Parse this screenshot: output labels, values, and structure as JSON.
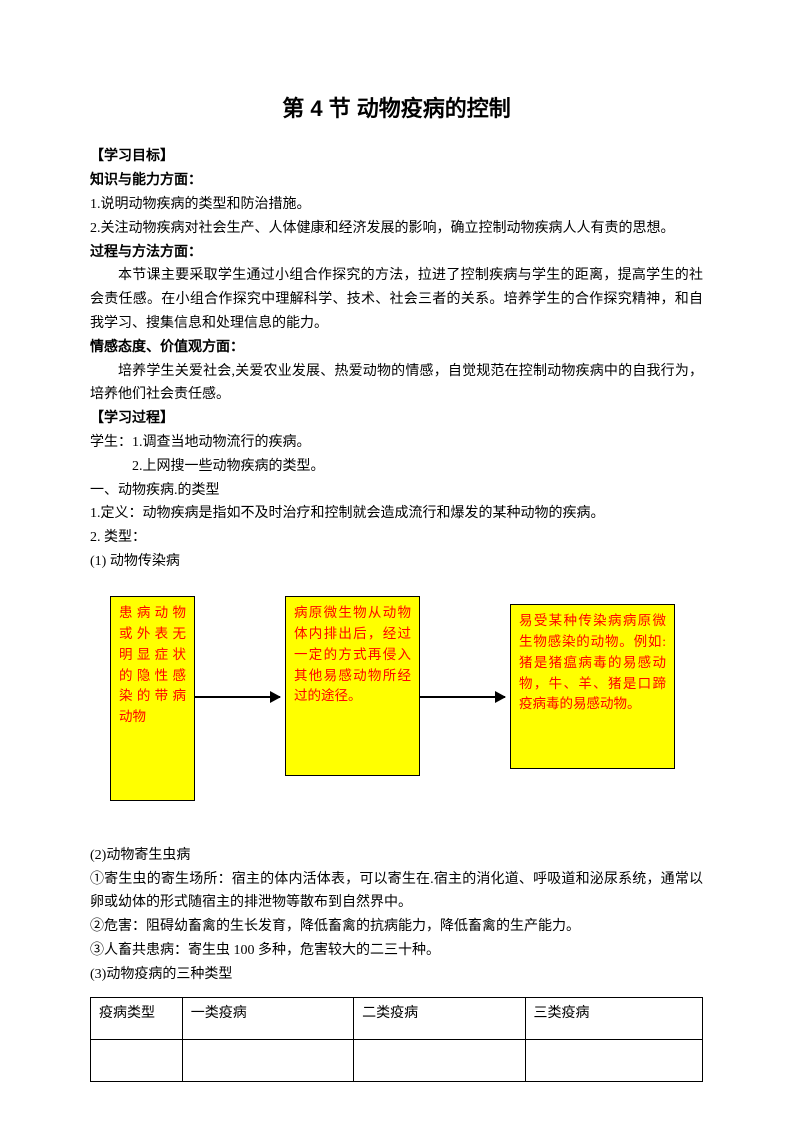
{
  "title": "第 4 节  动物疫病的控制",
  "sections": {
    "goals_header": "【学习目标】",
    "knowledge_header": "知识与能力方面：",
    "knowledge_1": "1.说明动物疾病的类型和防治措施。",
    "knowledge_2": "2.关注动物疾病对社会生产、人体健康和经济发展的影响，确立控制动物疾病人人有责的思想。",
    "method_header": "过程与方法方面：",
    "method_text": "本节课主要采取学生通过小组合作探究的方法，拉进了控制疾病与学生的距离，提高学生的社会责任感。在小组合作探究中理解科学、技术、社会三者的关系。培养学生的合作探究精神，和自我学习、搜集信息和处理信息的能力。",
    "attitude_header": "情感态度、价值观方面：",
    "attitude_text": "培养学生关爱社会,关爱农业发展、热爱动物的情感，自觉规范在控制动物疾病中的自我行为，培养他们社会责任感。",
    "process_header": "【学习过程】",
    "student_1": "学生：1.调查当地动物流行的疾病。",
    "student_2": "2.上网搜一些动物疾病的类型。",
    "type_header": "一、动物疾病.的类型",
    "definition": "1.定义：动物疾病是指如不及时治疗和控制就会造成流行和爆发的某种动物的疾病。",
    "type_label": "2. 类型：",
    "type_1": "(1) 动物传染病",
    "type_2": "(2)动物寄生虫病",
    "parasite_1": "①寄生虫的寄生场所：宿主的体内活体表，可以寄生在.宿主的消化道、呼吸道和泌尿系统，通常以卵或幼体的形式随宿主的排泄物等散布到自然界中。",
    "parasite_2": "②危害：阻碍幼畜禽的生长发育，降低畜禽的抗病能力，降低畜禽的生产能力。",
    "parasite_3": "③人畜共患病：寄生虫 100 多种，危害较大的二三十种。",
    "type_3": "(3)动物疫病的三种类型"
  },
  "flowchart": {
    "box1_text": "患病动物或外表无明显症状的隐性感染的带病动物",
    "box2_text": "病原微生物从动物体内排出后，经过一定的方式再侵入其他易感动物所经过的途径。",
    "box3_text": "易受某种传染病病原微生物感染的动物。例如:猪是猪瘟病毒的易感动物，牛、羊、猪是口蹄疫病毒的易感动物。",
    "box_bg": "#ffff00",
    "box_border": "#000000",
    "box_text_color": "#ff0000",
    "arrow_color": "#000000"
  },
  "table": {
    "headers": [
      "疫病类型",
      "一类疫病",
      "二类疫病",
      "三类疫病"
    ],
    "row2": [
      "",
      "",
      "",
      ""
    ]
  }
}
